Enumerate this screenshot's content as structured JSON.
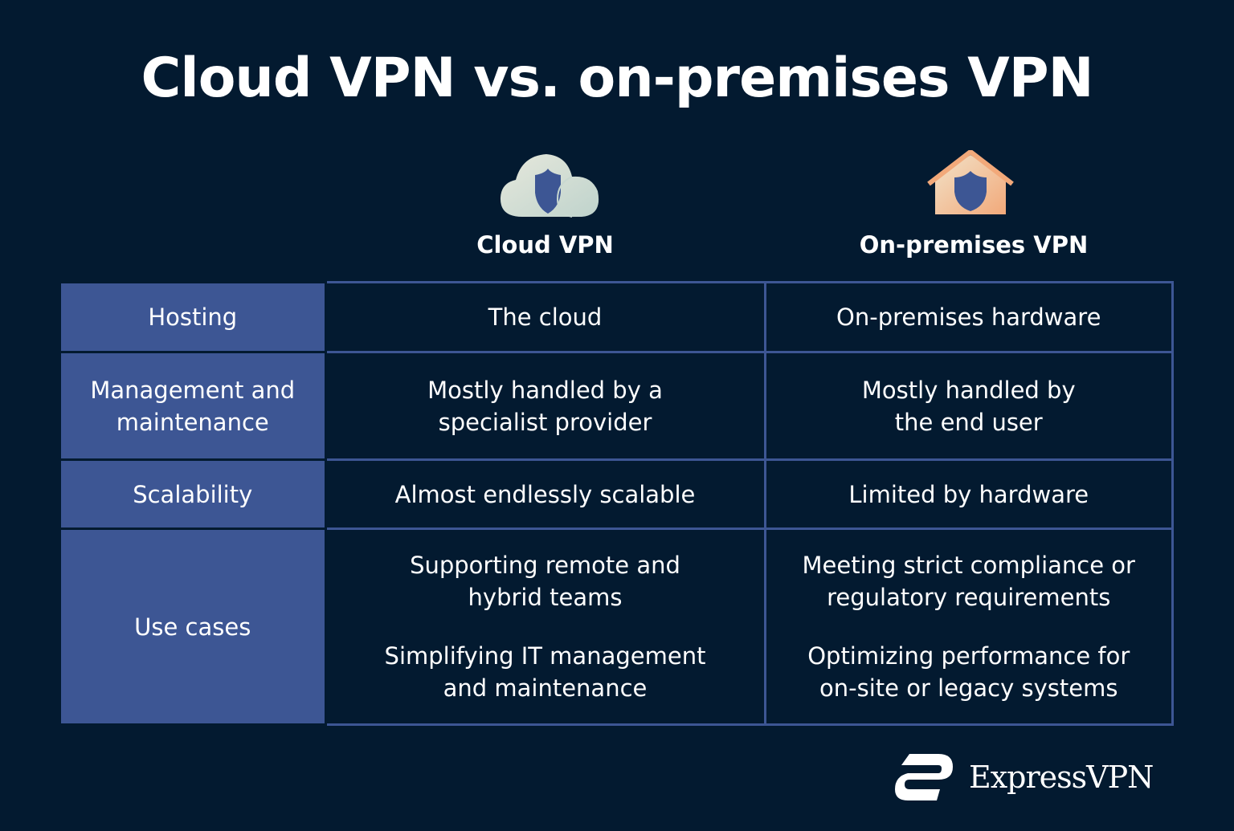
{
  "title": "Cloud VPN vs. on-premises VPN",
  "columns": [
    {
      "label": "Cloud VPN",
      "icon": "cloud-shield-icon"
    },
    {
      "label": "On-premises VPN",
      "icon": "house-shield-icon"
    }
  ],
  "rows": [
    {
      "label": "Hosting",
      "cloud": [
        "The cloud"
      ],
      "onprem": [
        "On-premises hardware"
      ]
    },
    {
      "label": "Management and maintenance",
      "cloud": [
        "Mostly handled by a specialist provider"
      ],
      "onprem": [
        "Mostly handled by the end user"
      ]
    },
    {
      "label": "Scalability",
      "cloud": [
        "Almost endlessly scalable"
      ],
      "onprem": [
        "Limited by hardware"
      ]
    },
    {
      "label": "Use cases",
      "cloud": [
        "Supporting remote and hybrid teams",
        "Simplifying IT management and maintenance"
      ],
      "onprem": [
        "Meeting strict compliance or regulatory requirements",
        "Optimizing performance for on-site or legacy systems"
      ]
    }
  ],
  "brand": {
    "name": "ExpressVPN"
  },
  "colors": {
    "background": "#031a30",
    "accent": "#3d5694",
    "house": "#f2a97a",
    "cloud": "#d0ddd6"
  }
}
